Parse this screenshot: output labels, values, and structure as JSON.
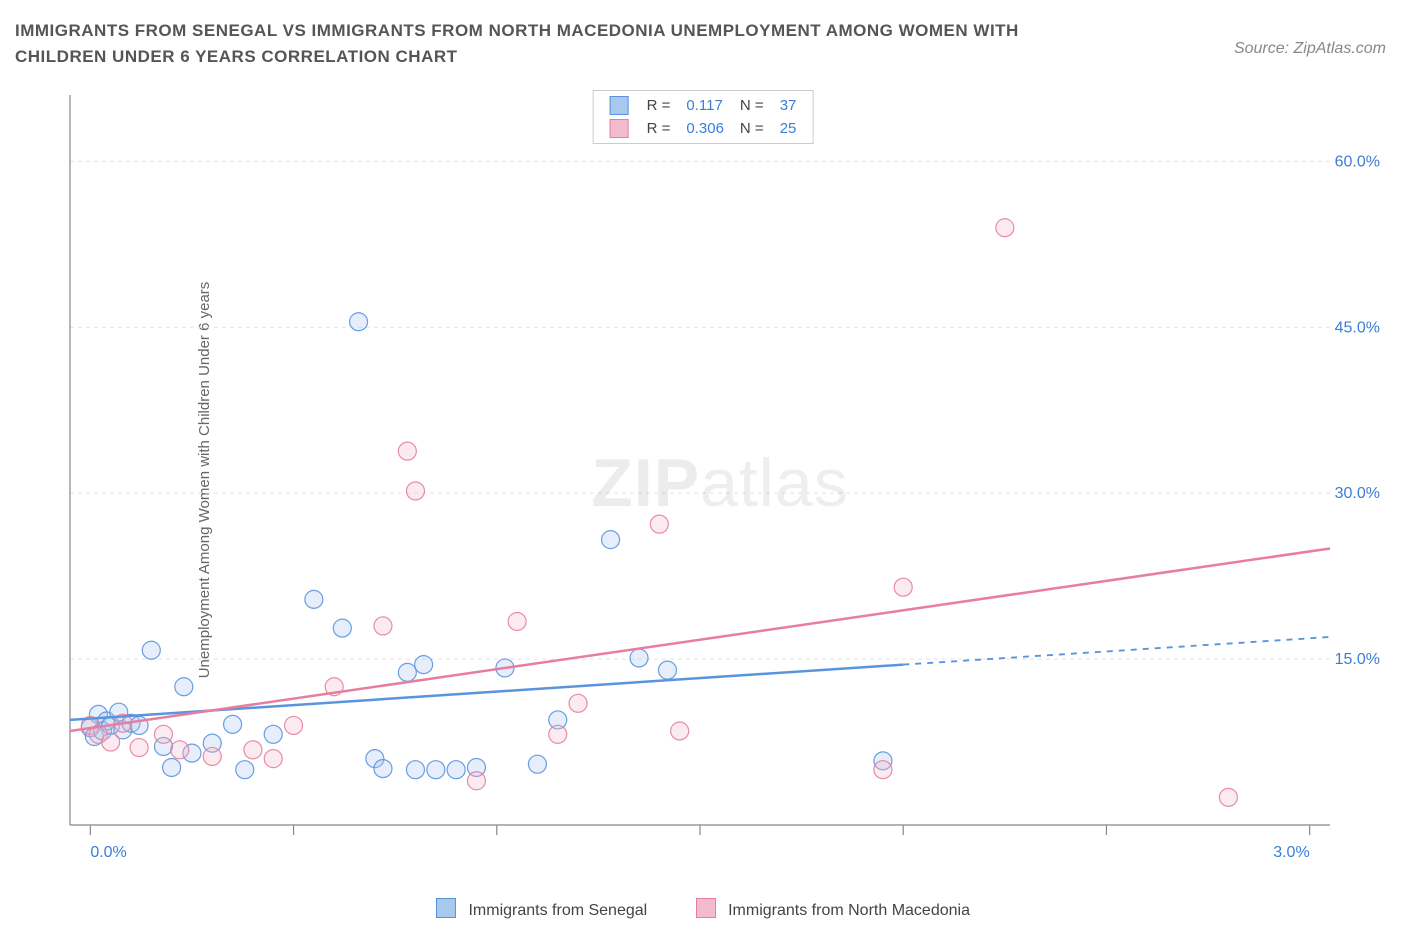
{
  "title": "IMMIGRANTS FROM SENEGAL VS IMMIGRANTS FROM NORTH MACEDONIA UNEMPLOYMENT AMONG WOMEN WITH CHILDREN UNDER 6 YEARS CORRELATION CHART",
  "source": "Source: ZipAtlas.com",
  "ylabel": "Unemployment Among Women with Children Under 6 years",
  "watermark_a": "ZIP",
  "watermark_b": "atlas",
  "chart": {
    "type": "scatter",
    "background_color": "#ffffff",
    "grid_color": "#e4e4e4",
    "axis_line_color": "#888888",
    "xlim": [
      -0.05,
      3.05
    ],
    "ylim": [
      0,
      66
    ],
    "x_ticks": [
      0.0,
      0.5,
      1.0,
      1.5,
      2.0,
      2.5,
      3.0
    ],
    "x_tick_labels": {
      "0": "0.0%",
      "3": "3.0%"
    },
    "y_grid": [
      15,
      30,
      45,
      60
    ],
    "y_tick_labels": [
      "15.0%",
      "30.0%",
      "45.0%",
      "60.0%"
    ],
    "label_color": "#3b7dd8",
    "label_fontsize": 16,
    "tick_len": 10,
    "marker_radius": 9,
    "marker_opacity_fill": 0.3,
    "marker_opacity_stroke": 0.9,
    "marker_stroke_width": 1.2,
    "trend_line_width": 2.5,
    "trend_dash": "6,6"
  },
  "series": [
    {
      "id": "senegal",
      "label": "Immigrants from Senegal",
      "color": "#5a94dd",
      "fill": "#a9c8ee",
      "R": "0.117",
      "N": "37",
      "trend": {
        "x1": -0.05,
        "y1": 9.5,
        "x2": 2.0,
        "y2": 14.5,
        "extend_x2": 3.05,
        "extend_y2": 17.0
      },
      "points": [
        [
          0.0,
          8.8
        ],
        [
          0.01,
          8.0
        ],
        [
          0.02,
          10.0
        ],
        [
          0.03,
          8.5
        ],
        [
          0.04,
          9.4
        ],
        [
          0.05,
          9.0
        ],
        [
          0.07,
          10.2
        ],
        [
          0.08,
          8.6
        ],
        [
          0.1,
          9.2
        ],
        [
          0.12,
          9.0
        ],
        [
          0.15,
          15.8
        ],
        [
          0.18,
          7.1
        ],
        [
          0.2,
          5.2
        ],
        [
          0.23,
          12.5
        ],
        [
          0.25,
          6.5
        ],
        [
          0.3,
          7.4
        ],
        [
          0.35,
          9.1
        ],
        [
          0.38,
          5.0
        ],
        [
          0.45,
          8.2
        ],
        [
          0.55,
          20.4
        ],
        [
          0.62,
          17.8
        ],
        [
          0.66,
          45.5
        ],
        [
          0.7,
          6.0
        ],
        [
          0.72,
          5.1
        ],
        [
          0.78,
          13.8
        ],
        [
          0.8,
          5.0
        ],
        [
          0.82,
          14.5
        ],
        [
          0.85,
          5.0
        ],
        [
          0.9,
          5.0
        ],
        [
          0.95,
          5.2
        ],
        [
          1.02,
          14.2
        ],
        [
          1.1,
          5.5
        ],
        [
          1.15,
          9.5
        ],
        [
          1.28,
          25.8
        ],
        [
          1.35,
          15.1
        ],
        [
          1.42,
          14.0
        ],
        [
          1.95,
          5.8
        ]
      ]
    },
    {
      "id": "nmacedonia",
      "label": "Immigrants from North Macedonia",
      "color": "#e77ea0",
      "fill": "#f3bccd",
      "R": "0.306",
      "N": "25",
      "trend": {
        "x1": -0.05,
        "y1": 8.5,
        "x2": 3.05,
        "y2": 25.0
      },
      "points": [
        [
          0.0,
          9.0
        ],
        [
          0.02,
          8.2
        ],
        [
          0.05,
          7.5
        ],
        [
          0.08,
          9.2
        ],
        [
          0.12,
          7.0
        ],
        [
          0.18,
          8.2
        ],
        [
          0.22,
          6.8
        ],
        [
          0.3,
          6.2
        ],
        [
          0.4,
          6.8
        ],
        [
          0.45,
          6.0
        ],
        [
          0.5,
          9.0
        ],
        [
          0.6,
          12.5
        ],
        [
          0.72,
          18.0
        ],
        [
          0.78,
          33.8
        ],
        [
          0.8,
          30.2
        ],
        [
          0.95,
          4.0
        ],
        [
          1.05,
          18.4
        ],
        [
          1.15,
          8.2
        ],
        [
          1.2,
          11.0
        ],
        [
          1.4,
          27.2
        ],
        [
          1.45,
          8.5
        ],
        [
          1.95,
          5.0
        ],
        [
          2.0,
          21.5
        ],
        [
          2.25,
          54.0
        ],
        [
          2.8,
          2.5
        ]
      ]
    }
  ],
  "legend_labels": {
    "R": "R =",
    "N": "N ="
  }
}
